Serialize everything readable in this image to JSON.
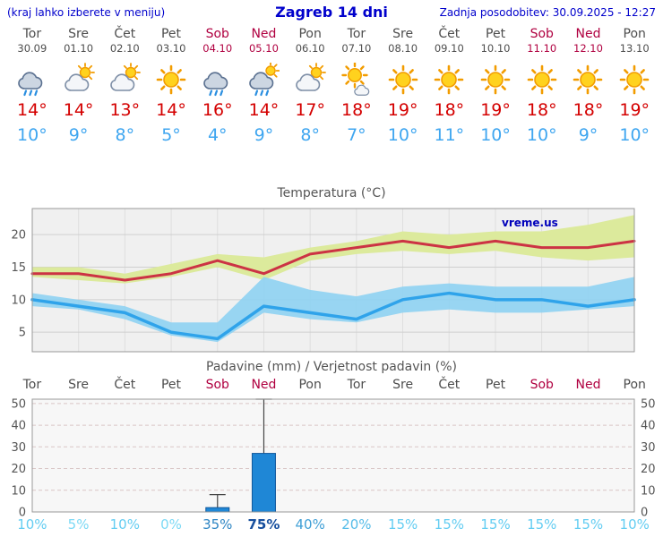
{
  "header": {
    "left_hint": "(kraj lahko izberete v meniju)",
    "title": "Zagreb 14 dni",
    "last_update": "Zadnja posodobitev: 30.09.2025 - 12:27"
  },
  "days": [
    {
      "label": "Tor",
      "date": "30.09",
      "weekend": false,
      "icon": "rain",
      "high": "14°",
      "low": "10°"
    },
    {
      "label": "Sre",
      "date": "01.10",
      "weekend": false,
      "icon": "partly-cloudy",
      "high": "14°",
      "low": "9°"
    },
    {
      "label": "Čet",
      "date": "02.10",
      "weekend": false,
      "icon": "partly-cloudy",
      "high": "13°",
      "low": "8°"
    },
    {
      "label": "Pet",
      "date": "03.10",
      "weekend": false,
      "icon": "sun",
      "high": "14°",
      "low": "5°"
    },
    {
      "label": "Sob",
      "date": "04.10",
      "weekend": true,
      "icon": "rain",
      "high": "16°",
      "low": "4°"
    },
    {
      "label": "Ned",
      "date": "05.10",
      "weekend": true,
      "icon": "rain-sun",
      "high": "14°",
      "low": "9°"
    },
    {
      "label": "Pon",
      "date": "06.10",
      "weekend": false,
      "icon": "partly-cloudy",
      "high": "17°",
      "low": "8°"
    },
    {
      "label": "Tor",
      "date": "07.10",
      "weekend": false,
      "icon": "sun-cloud",
      "high": "18°",
      "low": "7°"
    },
    {
      "label": "Sre",
      "date": "08.10",
      "weekend": false,
      "icon": "sun",
      "high": "19°",
      "low": "10°"
    },
    {
      "label": "Čet",
      "date": "09.10",
      "weekend": false,
      "icon": "sun",
      "high": "18°",
      "low": "11°"
    },
    {
      "label": "Pet",
      "date": "10.10",
      "weekend": false,
      "icon": "sun",
      "high": "19°",
      "low": "10°"
    },
    {
      "label": "Sob",
      "date": "11.10",
      "weekend": true,
      "icon": "sun",
      "high": "18°",
      "low": "10°"
    },
    {
      "label": "Ned",
      "date": "12.10",
      "weekend": true,
      "icon": "sun",
      "high": "18°",
      "low": "9°"
    },
    {
      "label": "Pon",
      "date": "13.10",
      "weekend": false,
      "icon": "sun",
      "high": "19°",
      "low": "10°"
    }
  ],
  "chart_data": [
    {
      "type": "line",
      "title": "Temperatura (°C)",
      "watermark": "vreme.us",
      "x_categories": [
        "Tor 30.09",
        "Sre 01.10",
        "Čet 02.10",
        "Pet 03.10",
        "Sob 04.10",
        "Ned 05.10",
        "Pon 06.10",
        "Tor 07.10",
        "Sre 08.10",
        "Čet 09.10",
        "Pet 10.10",
        "Sob 11.10",
        "Ned 12.10",
        "Pon 13.10"
      ],
      "ylim": [
        2,
        24
      ],
      "yticks": [
        5,
        10,
        15,
        20
      ],
      "grid": true,
      "legend": "none",
      "series": [
        {
          "name": "max_temp",
          "color": "#cc3344",
          "values": [
            14,
            14,
            13,
            14,
            16,
            14,
            17,
            18,
            19,
            18,
            19,
            18,
            18,
            19
          ]
        },
        {
          "name": "max_temp_range_high",
          "color": "#dcea9c",
          "values": [
            15,
            15,
            14,
            15.5,
            17,
            16.5,
            18,
            19,
            20.5,
            20,
            20.5,
            20.5,
            21.5,
            23
          ]
        },
        {
          "name": "max_temp_range_low",
          "color": "#dcea9c",
          "values": [
            13.5,
            13,
            12.5,
            13.5,
            15,
            13,
            16,
            17,
            17.5,
            17,
            17.5,
            16.5,
            16,
            16.5
          ]
        },
        {
          "name": "min_temp",
          "color": "#2fa3ea",
          "values": [
            10,
            9,
            8,
            5,
            4,
            9,
            8,
            7,
            10,
            11,
            10,
            10,
            9,
            10
          ]
        },
        {
          "name": "min_temp_range_high",
          "color": "#8ed2f2",
          "values": [
            11,
            10,
            9,
            6.5,
            6.5,
            13.5,
            11.5,
            10.5,
            12,
            12.5,
            12,
            12,
            12,
            13.5
          ]
        },
        {
          "name": "min_temp_range_low",
          "color": "#8ed2f2",
          "values": [
            9,
            8.5,
            7,
            4.5,
            3.5,
            8,
            7,
            6.5,
            8,
            8.5,
            8,
            8,
            8.5,
            9
          ]
        }
      ]
    },
    {
      "type": "bar",
      "title": "Padavine (mm) / Verjetnost padavin (%)",
      "categories": [
        "Tor",
        "Sre",
        "Čet",
        "Pet",
        "Sob",
        "Ned",
        "Pon",
        "Tor",
        "Sre",
        "Čet",
        "Pet",
        "Sob",
        "Ned",
        "Pon"
      ],
      "weekend_indices": [
        4,
        5,
        11,
        12
      ],
      "values_mm": [
        0,
        0,
        0,
        0,
        2,
        27,
        0,
        0,
        0,
        0,
        0,
        0,
        0,
        0
      ],
      "whisker_max_mm": [
        0,
        0,
        0,
        0,
        8,
        52,
        0,
        0,
        0,
        0,
        0,
        0,
        0,
        0
      ],
      "probabilities_pct": [
        10,
        5,
        10,
        0,
        35,
        75,
        40,
        20,
        15,
        15,
        15,
        15,
        15,
        10
      ],
      "ylim": [
        0,
        52
      ],
      "yticks": [
        0,
        10,
        20,
        30,
        40,
        50
      ],
      "bar_color": "#1f87d6",
      "grid": true
    }
  ],
  "probability_labels": [
    {
      "text": "10%",
      "color": "#64cdf2",
      "bold": false
    },
    {
      "text": "5%",
      "color": "#7cd9f5",
      "bold": false
    },
    {
      "text": "10%",
      "color": "#64cdf2",
      "bold": false
    },
    {
      "text": "0%",
      "color": "#7cd9f5",
      "bold": false
    },
    {
      "text": "35%",
      "color": "#2f86c4",
      "bold": false
    },
    {
      "text": "75%",
      "color": "#174f9e",
      "bold": true
    },
    {
      "text": "40%",
      "color": "#3f9fd6",
      "bold": false
    },
    {
      "text": "20%",
      "color": "#55bce8",
      "bold": false
    },
    {
      "text": "15%",
      "color": "#64cdf2",
      "bold": false
    },
    {
      "text": "15%",
      "color": "#64cdf2",
      "bold": false
    },
    {
      "text": "15%",
      "color": "#64cdf2",
      "bold": false
    },
    {
      "text": "15%",
      "color": "#64cdf2",
      "bold": false
    },
    {
      "text": "15%",
      "color": "#64cdf2",
      "bold": false
    },
    {
      "text": "10%",
      "color": "#64cdf2",
      "bold": false
    }
  ],
  "colors": {
    "header_blue": "#0000cc",
    "weekday_gray": "#4d4d4d",
    "weekend_red": "#b00040",
    "high_temp_red": "#d40000",
    "low_temp_blue": "#3fa6f0"
  }
}
